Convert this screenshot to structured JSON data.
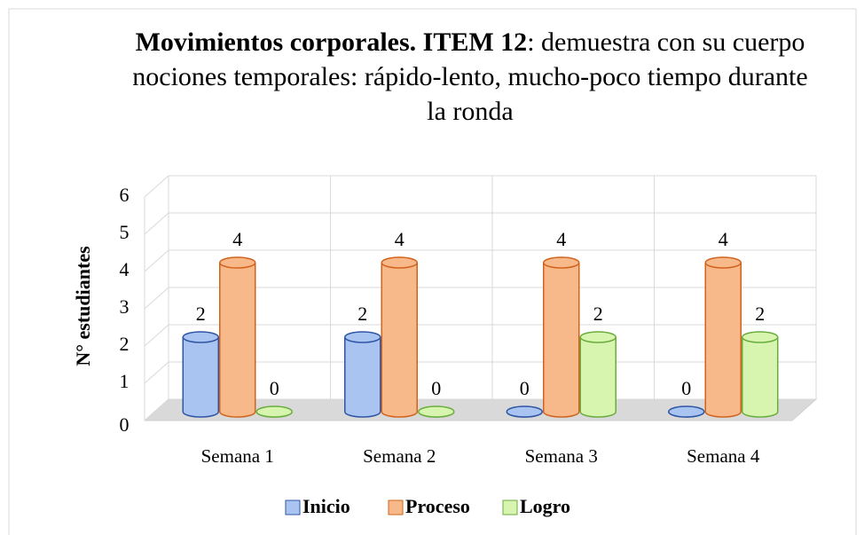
{
  "chart_data": {
    "type": "bar3d",
    "title_bold": "Movimientos corporales. ITEM 12",
    "title": ": demuestra con su cuerpo nociones temporales: rápido-lento, mucho-poco tiempo durante la ronda",
    "y_label": "N° estudiantes",
    "categories": [
      "Semana 1",
      "Semana 2",
      "Semana 3",
      "Semana 4"
    ],
    "series": [
      {
        "name": "Inicio",
        "color": "#a9c4f0",
        "stroke": "#2f55a4",
        "values": [
          2,
          2,
          0,
          0
        ]
      },
      {
        "name": "Proceso",
        "color": "#f8b98a",
        "stroke": "#d1631d",
        "values": [
          4,
          4,
          4,
          4
        ]
      },
      {
        "name": "Logro",
        "color": "#d8f5b0",
        "stroke": "#6aad3e",
        "values": [
          0,
          0,
          2,
          2
        ]
      }
    ],
    "ylim": [
      0,
      6
    ],
    "yticks": [
      0,
      1,
      2,
      3,
      4,
      5,
      6
    ],
    "grid": true,
    "legend": "bottom"
  }
}
